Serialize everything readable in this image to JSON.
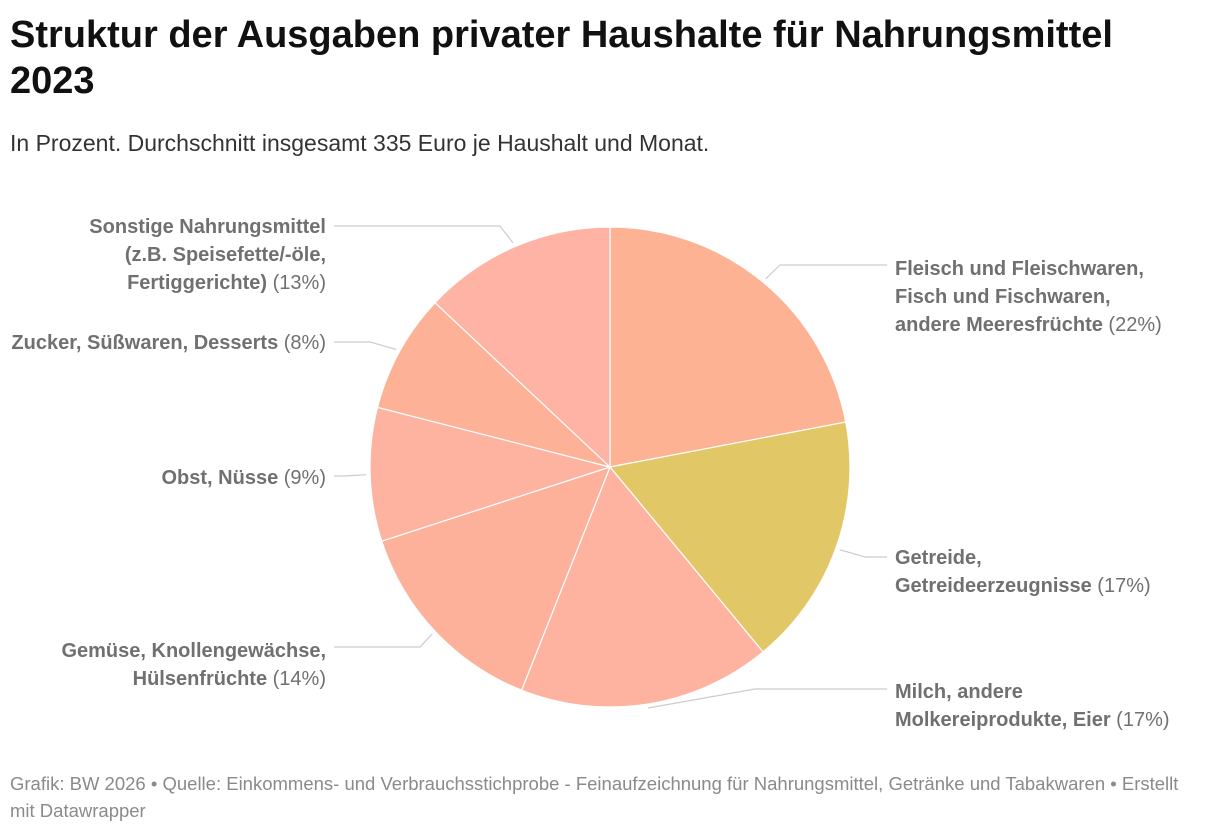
{
  "header": {
    "title": "Struktur der Ausgaben privater Haushalte für Nahrungsmittel 2023",
    "subtitle": "In Prozent. Durchschnitt insgesamt 335 Euro je Haushalt und Monat."
  },
  "chart_data": {
    "type": "pie",
    "title": "Struktur der Ausgaben privater Haushalte für Nahrungsmittel 2023",
    "subtitle": "In Prozent. Durchschnitt insgesamt 335 Euro je Haushalt und Monat.",
    "slices": [
      {
        "label": "Fleisch und Fleischwaren, Fisch und Fischwaren, andere Meeresfrüchte",
        "value": 22,
        "value_label": "(22%)",
        "lines": [
          "Fleisch und Fleischwaren,",
          "Fisch und Fischwaren,",
          "andere Meeresfrüchte"
        ],
        "color": "#fdb294"
      },
      {
        "label": "Getreide, Getreideerzeugnisse",
        "value": 17,
        "value_label": "(17%)",
        "lines": [
          "Getreide,",
          "Getreideerzeugnisse"
        ],
        "color": "#e2c767"
      },
      {
        "label": "Milch, andere Molkereiprodukte, Eier",
        "value": 17,
        "value_label": "(17%)",
        "lines": [
          "Milch, andere",
          "Molkereiprodukte, Eier"
        ],
        "color": "#feb2a0"
      },
      {
        "label": "Gemüse, Knollengewächse, Hülsenfrüchte",
        "value": 14,
        "value_label": "(14%)",
        "lines": [
          "Gemüse, Knollengewächse,",
          "Hülsenfrüchte"
        ],
        "color": "#fdb19b"
      },
      {
        "label": "Obst, Nüsse",
        "value": 9,
        "value_label": "(9%)",
        "lines": [
          "Obst, Nüsse"
        ],
        "color": "#feb3a1"
      },
      {
        "label": "Zucker, Süßwaren, Desserts",
        "value": 8,
        "value_label": "(8%)",
        "lines": [
          "Zucker, Süßwaren, Desserts"
        ],
        "color": "#fdb297"
      },
      {
        "label": "Sonstige Nahrungsmittel (z.B. Speisefette/-öle, Fertiggerichte)",
        "value": 13,
        "value_label": "(13%)",
        "lines": [
          "Sonstige Nahrungsmittel",
          "(z.B. Speisefette/-öle,",
          "Fertiggerichte)"
        ],
        "color": "#feb3a4"
      }
    ]
  },
  "footer": {
    "text": "Grafik: BW 2026 • Quelle: Einkommens- und Verbrauchsstichprobe - Feinaufzeichnung für Nahrungsmittel, Getränke und Tabakwaren • Erstellt mit Datawrapper"
  }
}
